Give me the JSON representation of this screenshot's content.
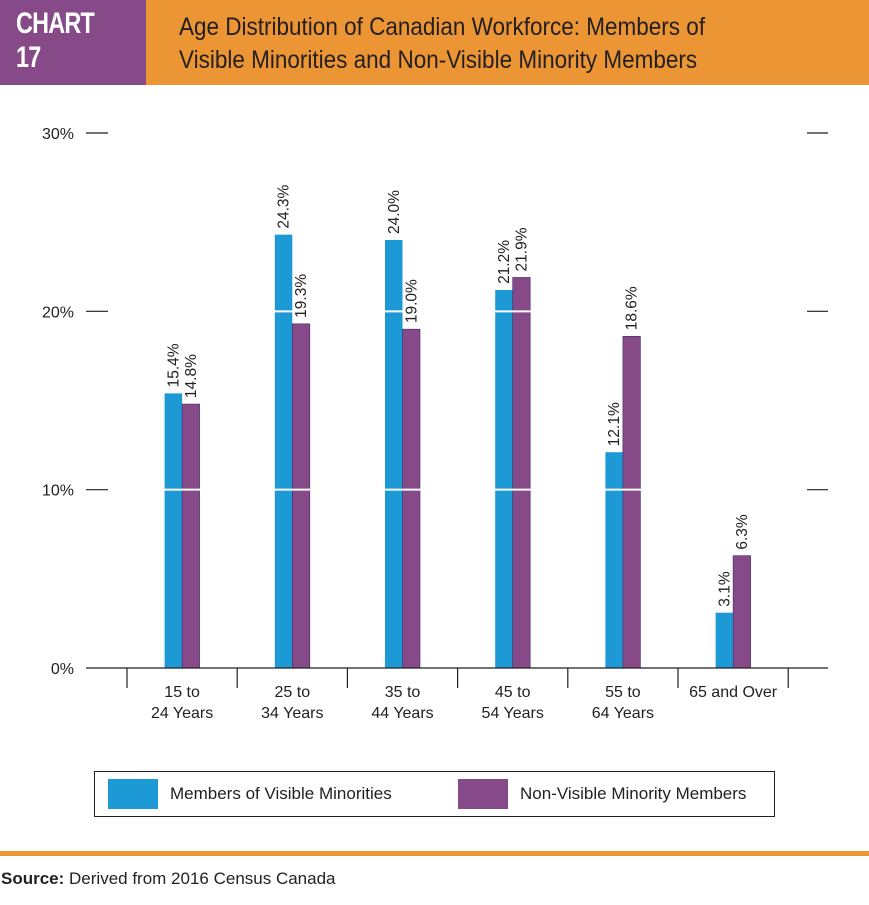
{
  "header": {
    "chart_number": "CHART 17",
    "title_line1": "Age Distribution of Canadian Workforce: Members of",
    "title_line2": "Visible Minorities and Non-Visible Minority Members"
  },
  "colors": {
    "header_purple": "#874a88",
    "header_orange": "#ec9534",
    "visible_minorities": "#1d9ad6",
    "non_visible_minority": "#874a88",
    "axis": "#231f20",
    "gridline": "#ffffff"
  },
  "chart_data": {
    "type": "bar",
    "title": "Age Distribution of Canadian Workforce: Members of Visible Minorities and Non-Visible Minority Members",
    "xlabel": "",
    "ylabel": "",
    "categories": [
      [
        "15 to",
        "24 Years"
      ],
      [
        "25 to",
        "34 Years"
      ],
      [
        "35 to",
        "44 Years"
      ],
      [
        "45 to",
        "54 Years"
      ],
      [
        "55 to",
        "64 Years"
      ],
      [
        "65 and Over"
      ]
    ],
    "series": [
      {
        "name": "Members of Visible Minorities",
        "color": "#1d9ad6",
        "values": [
          15.4,
          24.3,
          24.0,
          21.2,
          12.1,
          3.1
        ],
        "labels": [
          "15.4%",
          "24.3%",
          "24.0%",
          "21.2%",
          "12.1%",
          "3.1%"
        ]
      },
      {
        "name": "Non-Visible Minority Members",
        "color": "#874a88",
        "values": [
          14.8,
          19.3,
          19.0,
          21.9,
          18.6,
          6.3
        ],
        "labels": [
          "14.8%",
          "19.3%",
          "19.0%",
          "21.9%",
          "18.6%",
          "6.3%"
        ]
      }
    ],
    "ylim": [
      0,
      30
    ],
    "yticks": [
      0,
      10,
      20,
      30
    ],
    "ytick_labels": [
      "0%",
      "10%",
      "20%",
      "30%"
    ],
    "grid": "white lines at 10% and 20% visible through bars",
    "data_labels": "rotated vertical above bars",
    "legend_position": "bottom"
  },
  "legend": {
    "items": [
      {
        "label": "Members of Visible Minorities",
        "color": "#1d9ad6"
      },
      {
        "label": "Non-Visible Minority Members",
        "color": "#874a88"
      }
    ]
  },
  "footer": {
    "source_label": "Source:",
    "source_text": " Derived from 2016 Census Canada"
  }
}
